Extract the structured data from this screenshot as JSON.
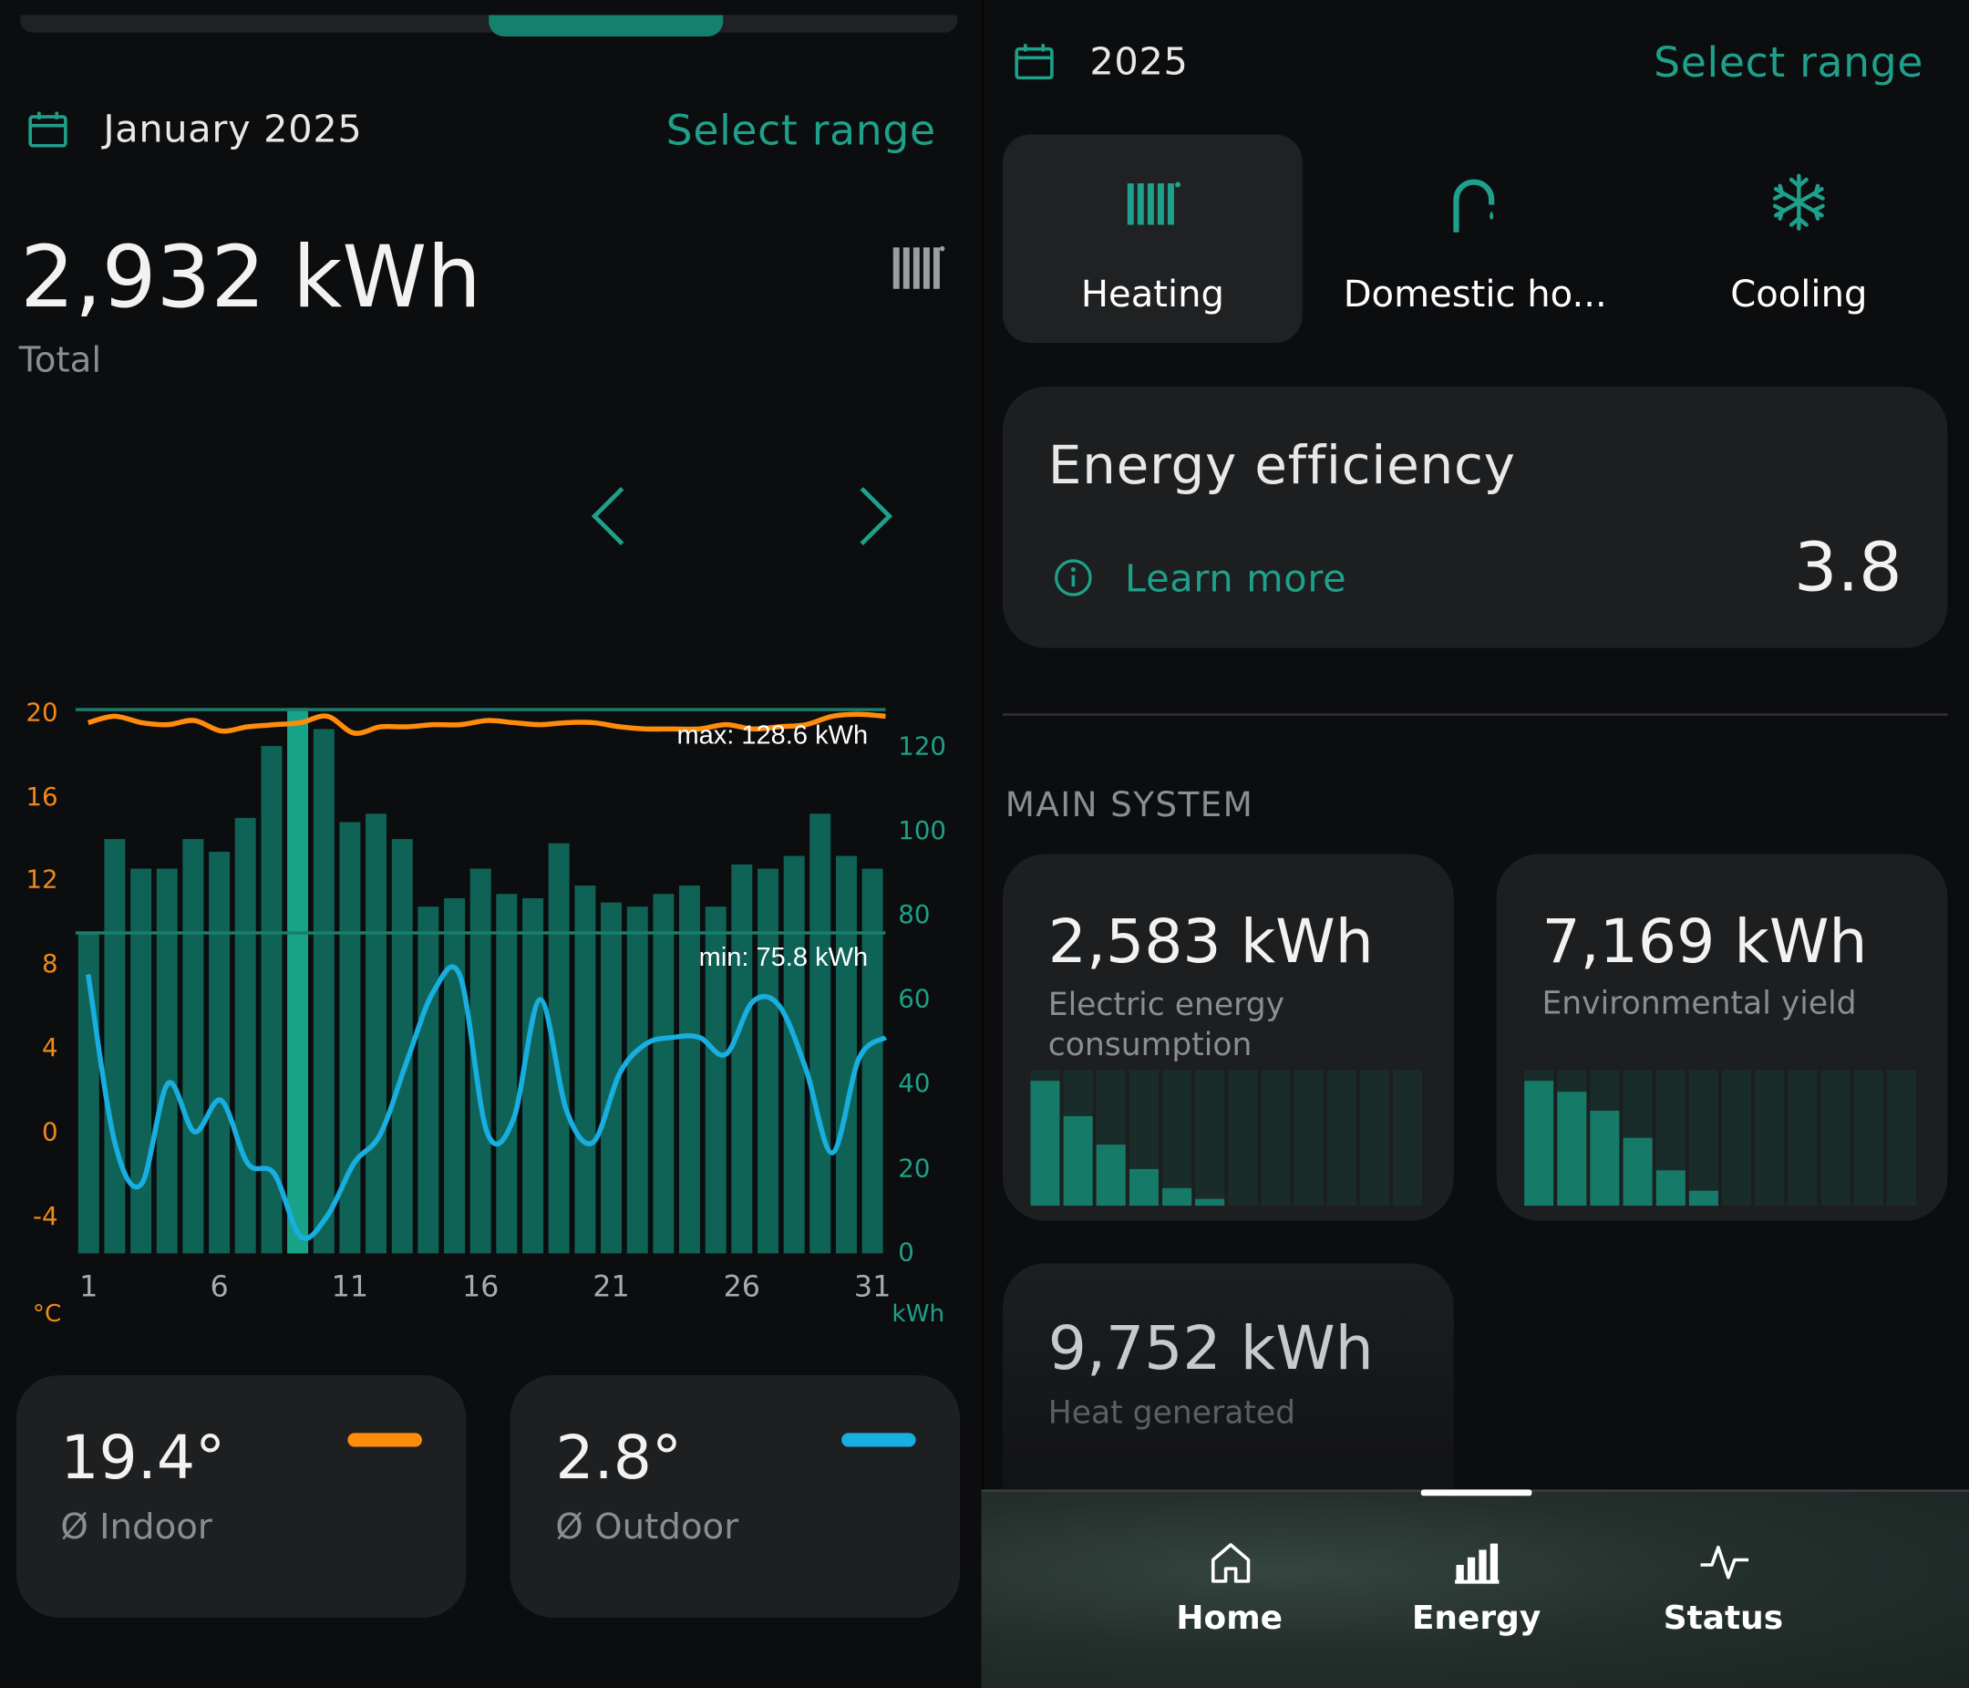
{
  "left": {
    "period": "January 2025",
    "select_range": "Select range",
    "total_value": "2,932 kWh",
    "total_label": "Total",
    "max_label": "max: 128.6 kWh",
    "min_label": "min: 75.8 kWh",
    "temp_unit": "°C",
    "energy_unit": "kWh",
    "indoor_value": "19.4°",
    "indoor_label": "Ø Indoor",
    "outdoor_value": "2.8°",
    "outdoor_label": "Ø Outdoor"
  },
  "right": {
    "period": "2025",
    "select_range": "Select range",
    "tabs": [
      {
        "label": "Heating",
        "icon": "radiator-icon",
        "selected": true
      },
      {
        "label": "Domestic ho...",
        "icon": "faucet-icon",
        "selected": false
      },
      {
        "label": "Cooling",
        "icon": "snowflake-icon",
        "selected": false
      }
    ],
    "efficiency_title": "Energy efficiency",
    "learn_more": "Learn more",
    "efficiency_value": "3.8",
    "section_title": "MAIN SYSTEM",
    "electric_value": "2,583 kWh",
    "electric_label_1": "Electric energy",
    "electric_label_2": "consumption",
    "env_value": "7,169 kWh",
    "env_label": "Environmental yield",
    "heat_value": "9,752 kWh",
    "heat_label": "Heat generated"
  },
  "minichart_electric": [
    0.92,
    0.66,
    0.45,
    0.27,
    0.13,
    0.05,
    0,
    0,
    0,
    0,
    0,
    0
  ],
  "minichart_env": [
    0.92,
    0.84,
    0.7,
    0.5,
    0.26,
    0.11,
    0,
    0,
    0,
    0,
    0,
    0
  ],
  "nav": [
    {
      "label": "Home",
      "icon": "home-icon",
      "active": false
    },
    {
      "label": "Energy",
      "icon": "bar-chart-icon",
      "active": true
    },
    {
      "label": "Status",
      "icon": "pulse-icon",
      "active": false
    }
  ],
  "colors": {
    "accent": "#1fa08a",
    "bar": "#0f6356",
    "bar_selected": "#16a388",
    "indoor": "#ff8c0a",
    "outdoor": "#19aee0",
    "card": "#1d1f21"
  },
  "chart_data": {
    "type": "bar",
    "x_ticks": [
      "1",
      "6",
      "11",
      "16",
      "21",
      "26",
      "31"
    ],
    "y_left_ticks": [
      "20",
      "16",
      "12",
      "8",
      "4",
      "0",
      "-4"
    ],
    "y_right_ticks": [
      "120",
      "100",
      "80",
      "60",
      "40",
      "20",
      "0"
    ],
    "x": [
      1,
      2,
      3,
      4,
      5,
      6,
      7,
      8,
      9,
      10,
      11,
      12,
      13,
      14,
      15,
      16,
      17,
      18,
      19,
      20,
      21,
      22,
      23,
      24,
      25,
      26,
      27,
      28,
      29,
      30,
      31
    ],
    "series": [
      {
        "name": "kWh",
        "axis": "right",
        "type": "bar",
        "values": [
          76,
          98,
          91,
          91,
          98,
          95,
          103,
          120,
          129,
          124,
          102,
          104,
          98,
          82,
          84,
          91,
          85,
          84,
          97,
          87,
          83,
          82,
          85,
          87,
          82,
          92,
          91,
          94,
          104,
          94,
          91
        ]
      },
      {
        "name": "Ø Indoor",
        "axis": "left",
        "type": "line",
        "values": [
          19.5,
          19.8,
          19.5,
          19.4,
          19.6,
          19.1,
          19.3,
          19.4,
          19.5,
          19.8,
          19.0,
          19.3,
          19.3,
          19.4,
          19.4,
          19.6,
          19.5,
          19.4,
          19.5,
          19.5,
          19.3,
          19.2,
          19.2,
          19.2,
          19.4,
          19.2,
          19.3,
          19.4,
          19.8,
          19.9,
          19.8
        ]
      },
      {
        "name": "Ø Outdoor",
        "axis": "left",
        "type": "line",
        "values": [
          7.5,
          -0.5,
          -2.5,
          2.3,
          0,
          1.5,
          -1.5,
          -2.0,
          -5.0,
          -4.0,
          -1.5,
          -0.1,
          3.4,
          6.7,
          7.4,
          0,
          0.6,
          6.3,
          1.0,
          -0.5,
          2.8,
          4.2,
          4.5,
          4.5,
          3.7,
          6.2,
          6.0,
          3.0,
          -1.0,
          3.5,
          4.5
        ]
      }
    ],
    "y_left_range": [
      -6,
      20
    ],
    "y_right_range": [
      0,
      130
    ],
    "selected_index": 8,
    "max_ref": 128.6,
    "min_ref": 75.8
  }
}
